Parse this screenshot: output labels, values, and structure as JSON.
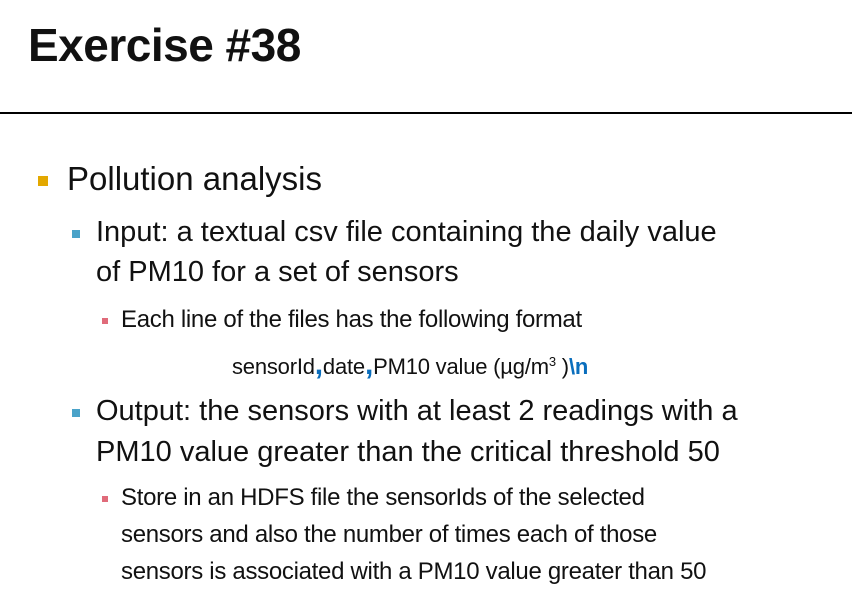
{
  "slide": {
    "title": "Exercise #38",
    "heading": "Pollution analysis",
    "input_line1": "Input: a textual csv file containing the daily value",
    "input_line2": "of PM10 for a set of sensors",
    "format_intro": "Each line of the files has the following format",
    "format": {
      "field1": "sensorId",
      "separator": ",",
      "field2": "date",
      "field3_prefix": "PM10 value (µg/m",
      "superscript": "3",
      "field3_suffix": " )",
      "newline": "\\n"
    },
    "output_line1": "Output: the sensors with at least 2 readings with a",
    "output_line2": "PM10 value greater than the critical threshold 50",
    "store_line1": "Store in an HDFS file the sensorIds of the selected",
    "store_line2": "sensors and also the number of times each of those",
    "store_line3": "sensors is associated with a PM10 value greater than 50"
  }
}
